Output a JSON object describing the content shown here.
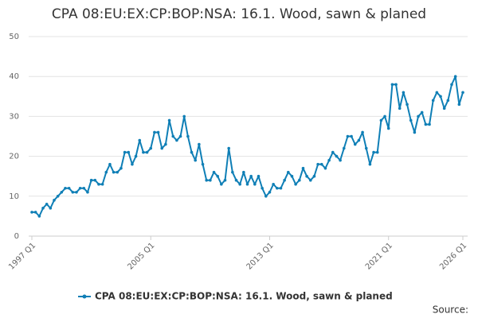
{
  "chart_data": {
    "type": "line",
    "title": "CPA 08:EU:EX:CP:BOP:NSA: 16.1. Wood, sawn & planed",
    "source": "Source:",
    "categories": [
      "1997 Q1",
      null,
      null,
      null,
      null,
      null,
      null,
      null,
      null,
      null,
      null,
      null,
      null,
      null,
      null,
      null,
      null,
      null,
      null,
      null,
      null,
      null,
      null,
      null,
      null,
      null,
      null,
      null,
      null,
      null,
      null,
      null,
      "2005 Q1",
      null,
      null,
      null,
      null,
      null,
      null,
      null,
      null,
      null,
      null,
      null,
      null,
      null,
      null,
      null,
      null,
      null,
      null,
      null,
      null,
      null,
      null,
      null,
      null,
      null,
      null,
      null,
      null,
      null,
      null,
      null,
      "2013 Q1",
      null,
      null,
      null,
      null,
      null,
      null,
      null,
      null,
      null,
      null,
      null,
      null,
      null,
      null,
      null,
      null,
      null,
      null,
      null,
      null,
      null,
      null,
      null,
      null,
      null,
      null,
      null,
      null,
      null,
      null,
      null,
      "2021 Q1",
      null,
      null,
      null,
      null,
      null,
      null,
      null,
      null,
      null,
      null,
      null,
      null,
      null,
      null,
      null,
      null,
      null,
      null,
      null,
      "2026 Q1"
    ],
    "series": [
      {
        "name": "CPA 08:EU:EX:CP:BOP:NSA: 16.1. Wood, sawn & planed",
        "color": "#0f7fb6",
        "values": [
          6,
          6,
          5,
          7,
          8,
          7,
          9,
          10,
          11,
          12,
          12,
          11,
          11,
          12,
          12,
          11,
          14,
          14,
          13,
          13,
          16,
          18,
          16,
          16,
          17,
          21,
          21,
          18,
          20,
          24,
          21,
          21,
          22,
          26,
          26,
          22,
          23,
          29,
          25,
          24,
          25,
          30,
          25,
          21,
          19,
          23,
          18,
          14,
          14,
          16,
          15,
          13,
          14,
          22,
          16,
          14,
          13,
          16,
          13,
          15,
          13,
          15,
          12,
          10,
          11,
          13,
          12,
          12,
          14,
          16,
          15,
          13,
          14,
          17,
          15,
          14,
          15,
          18,
          18,
          17,
          19,
          21,
          20,
          19,
          22,
          25,
          25,
          23,
          24,
          26,
          22,
          18,
          21,
          21,
          29,
          30,
          27,
          38,
          38,
          32,
          36,
          33,
          29,
          26,
          30,
          31,
          28,
          28,
          34,
          36,
          35,
          32,
          34,
          38,
          40,
          33,
          36
        ]
      }
    ],
    "ylim": [
      0,
      50
    ],
    "yticks": [
      0,
      10,
      20,
      30,
      40,
      50
    ],
    "grid": true,
    "legend": "bottom"
  }
}
